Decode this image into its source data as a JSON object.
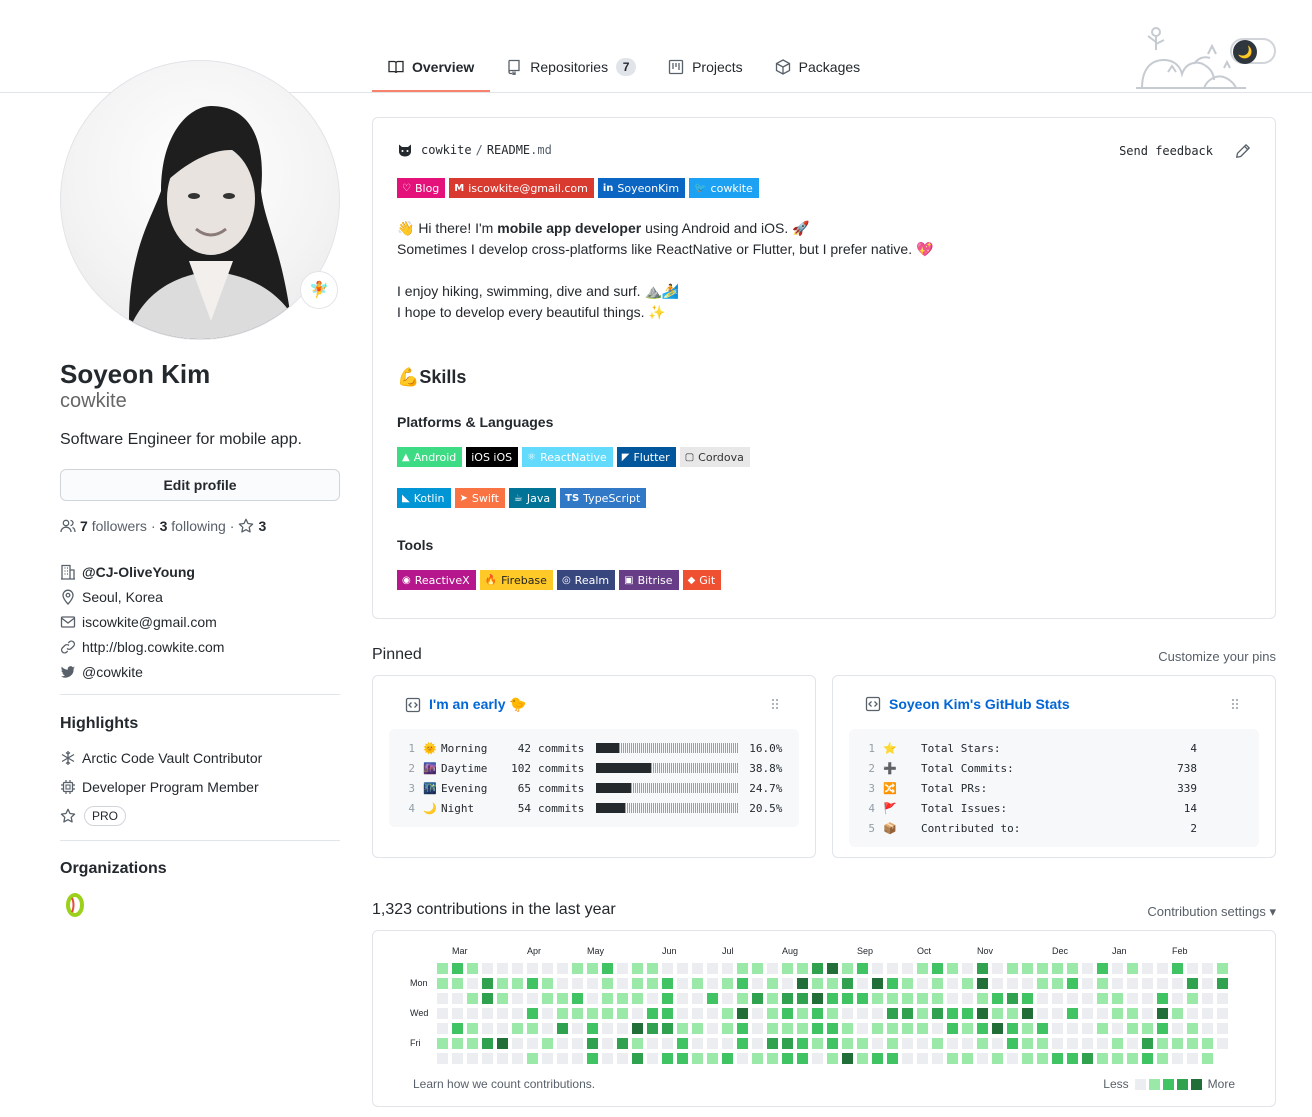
{
  "nav": {
    "tabs": [
      {
        "label": "Overview",
        "active": true
      },
      {
        "label": "Repositories",
        "count": "7"
      },
      {
        "label": "Projects"
      },
      {
        "label": "Packages"
      }
    ]
  },
  "theme": {
    "toggle_icon": "moon-icon"
  },
  "profile": {
    "name": "Soyeon Kim",
    "login": "cowkite",
    "bio": "Software Engineer for mobile app.",
    "edit_label": "Edit profile",
    "followers_count": "7",
    "followers_label": "followers",
    "following_count": "3",
    "following_label": "following",
    "stars_count": "3",
    "company": "@CJ-OliveYoung",
    "location": "Seoul, Korea",
    "email": "iscowkite@gmail.com",
    "website": "http://blog.cowkite.com",
    "twitter": "@cowkite",
    "status_emoji": "🧚"
  },
  "highlights": {
    "title": "Highlights",
    "items": [
      "Arctic Code Vault Contributor",
      "Developer Program Member"
    ],
    "pro": "PRO"
  },
  "organizations": {
    "title": "Organizations"
  },
  "readme": {
    "repo": "cowkite",
    "sep": "/",
    "file": "README",
    "ext": ".md",
    "feedback": "Send feedback",
    "contact_badges": [
      {
        "label": "Blog",
        "color": "#e4117a",
        "icon": "♡"
      },
      {
        "label": "iscowkite@gmail.com",
        "color": "#d93a30",
        "icon": "M"
      },
      {
        "label": "SoyeonKim",
        "color": "#0a66c2",
        "icon": "in"
      },
      {
        "label": "cowkite",
        "color": "#1da1f2",
        "icon": "🐦"
      }
    ],
    "line1_pre": "👋 Hi there! I'm ",
    "line1_bold": "mobile app developer",
    "line1_post": " using Android and iOS. 🚀",
    "line2": "Sometimes I develop cross-platforms like ReactNative or Flutter, but I prefer native. 💖",
    "line3": "I enjoy hiking, swimming, dive and surf. ⛰️🏄",
    "line4": "I hope to develop every beautiful things. ✨",
    "skills_title": "💪Skills",
    "platforms_title": "Platforms & Languages",
    "platform_badges": [
      {
        "label": "Android",
        "color": "#3ddc84",
        "icon": "▲"
      },
      {
        "label": "iOS iOS",
        "color": "#000000",
        "icon": ""
      },
      {
        "label": "ReactNative",
        "color": "#61dafb",
        "icon": "⚛"
      },
      {
        "label": "Flutter",
        "color": "#02569b",
        "icon": "◤"
      },
      {
        "label": "Cordova",
        "color": "#e8e8e8",
        "icon": "▢",
        "text": "#333333"
      }
    ],
    "language_badges": [
      {
        "label": "Kotlin",
        "color": "#0095d5",
        "icon": "◣"
      },
      {
        "label": "Swift",
        "color": "#fa7343",
        "icon": "➤"
      },
      {
        "label": "Java",
        "color": "#007396",
        "icon": "☕"
      },
      {
        "label": "TypeScript",
        "color": "#3178c6",
        "icon": "TS"
      }
    ],
    "tools_title": "Tools",
    "tool_badges": [
      {
        "label": "ReactiveX",
        "color": "#b7178c",
        "icon": "◉"
      },
      {
        "label": "Firebase",
        "color": "#ffca28",
        "icon": "🔥",
        "text": "#222222"
      },
      {
        "label": "Realm",
        "color": "#39477f",
        "icon": "◎"
      },
      {
        "label": "Bitrise",
        "color": "#683d87",
        "icon": "▣"
      },
      {
        "label": "Git",
        "color": "#f05032",
        "icon": "◆"
      }
    ]
  },
  "pinned": {
    "title": "Pinned",
    "customize": "Customize your pins",
    "card1": {
      "title": "I'm an early 🐤",
      "rows": [
        {
          "n": "1",
          "emoji": "🌞",
          "label": "Morning",
          "commits": "42",
          "unit": "commits",
          "pct": "16.0%",
          "frac": 0.16
        },
        {
          "n": "2",
          "emoji": "🌆",
          "label": "Daytime",
          "commits": "102",
          "unit": "commits",
          "pct": "38.8%",
          "frac": 0.388
        },
        {
          "n": "3",
          "emoji": "🌃",
          "label": "Evening",
          "commits": "65",
          "unit": "commits",
          "pct": "24.7%",
          "frac": 0.247
        },
        {
          "n": "4",
          "emoji": "🌙",
          "label": "Night",
          "commits": "54",
          "unit": "commits",
          "pct": "20.5%",
          "frac": 0.205
        }
      ]
    },
    "card2": {
      "title": "Soyeon Kim's GitHub Stats",
      "rows": [
        {
          "n": "1",
          "emoji": "⭐",
          "label": "Total Stars:",
          "value": "4"
        },
        {
          "n": "2",
          "emoji": "➕",
          "label": "Total Commits:",
          "value": "738"
        },
        {
          "n": "3",
          "emoji": "🔀",
          "label": "Total PRs:",
          "value": "339"
        },
        {
          "n": "4",
          "emoji": "🚩",
          "label": "Total Issues:",
          "value": "14"
        },
        {
          "n": "5",
          "emoji": "📦",
          "label": "Contributed to:",
          "value": "2"
        }
      ]
    }
  },
  "contributions": {
    "title": "1,323 contributions in the last year",
    "settings": "Contribution settings ▾",
    "months": [
      "Mar",
      "Apr",
      "May",
      "Jun",
      "Jul",
      "Aug",
      "Sep",
      "Oct",
      "Nov",
      "Dec",
      "Jan",
      "Feb"
    ],
    "days": [
      "Mon",
      "Wed",
      "Fri"
    ],
    "learn": "Learn how we count contributions.",
    "less": "Less",
    "more": "More",
    "colors": [
      "#ebedf0",
      "#9be9a8",
      "#40c463",
      "#30a14e",
      "#216e39"
    ]
  }
}
